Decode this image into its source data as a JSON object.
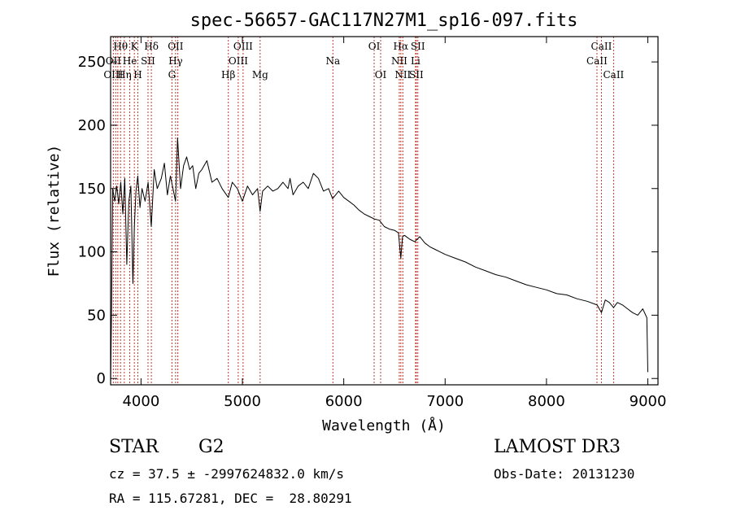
{
  "chart_data": {
    "type": "line",
    "title": "spec-56657-GAC117N27M1_sp16-097.fits",
    "xlabel": "Wavelength (Å)",
    "ylabel": "Flux (relative)",
    "xlim": [
      3700,
      9100
    ],
    "ylim": [
      -5,
      270
    ],
    "xticks": [
      4000,
      5000,
      6000,
      7000,
      8000,
      9000
    ],
    "yticks": [
      0,
      50,
      100,
      150,
      200,
      250
    ],
    "grid": false,
    "series": [
      {
        "x": [
          3700,
          3710,
          3720,
          3740,
          3760,
          3780,
          3800,
          3820,
          3840,
          3860,
          3880,
          3900,
          3920,
          3934,
          3950,
          3968,
          3990,
          4010,
          4040,
          4070,
          4101,
          4130,
          4160,
          4200,
          4230,
          4260,
          4290,
          4320,
          4340,
          4360,
          4390,
          4420,
          4450,
          4480,
          4510,
          4540,
          4570,
          4600,
          4650,
          4700,
          4750,
          4800,
          4861,
          4900,
          4950,
          5000,
          5050,
          5100,
          5150,
          5175,
          5200,
          5250,
          5300,
          5350,
          5400,
          5450,
          5470,
          5500,
          5550,
          5600,
          5650,
          5700,
          5750,
          5800,
          5850,
          5890,
          5950,
          6000,
          6050,
          6100,
          6150,
          6200,
          6250,
          6300,
          6350,
          6400,
          6450,
          6500,
          6540,
          6563,
          6580,
          6600,
          6650,
          6700,
          6750,
          6800,
          6850,
          6900,
          6950,
          7000,
          7100,
          7200,
          7300,
          7400,
          7500,
          7600,
          7700,
          7800,
          7900,
          8000,
          8100,
          8200,
          8300,
          8400,
          8500,
          8542,
          8580,
          8620,
          8662,
          8700,
          8750,
          8800,
          8850,
          8900,
          8950,
          8990,
          9000
        ],
        "y": [
          -3,
          55,
          150,
          140,
          152,
          138,
          155,
          130,
          158,
          90,
          140,
          152,
          75,
          120,
          148,
          160,
          135,
          150,
          140,
          155,
          120,
          165,
          150,
          158,
          170,
          145,
          160,
          148,
          140,
          190,
          150,
          168,
          175,
          165,
          168,
          150,
          162,
          165,
          172,
          155,
          158,
          150,
          143,
          155,
          150,
          140,
          152,
          145,
          150,
          132,
          148,
          152,
          148,
          150,
          155,
          150,
          158,
          145,
          152,
          155,
          150,
          162,
          158,
          148,
          150,
          142,
          148,
          143,
          140,
          137,
          133,
          130,
          128,
          126,
          125,
          120,
          118,
          117,
          115,
          95,
          112,
          113,
          110,
          108,
          112,
          107,
          104,
          102,
          100,
          98,
          95,
          92,
          88,
          85,
          82,
          80,
          77,
          74,
          72,
          70,
          67,
          66,
          63,
          61,
          58,
          52,
          62,
          60,
          56,
          60,
          58,
          55,
          52,
          50,
          55,
          48,
          5
        ]
      }
    ],
    "line_markers": [
      {
        "label": "Hθ",
        "x": 3798,
        "row": 0
      },
      {
        "label": "K",
        "x": 3934,
        "row": 0
      },
      {
        "label": "Hδ",
        "x": 4102,
        "row": 0
      },
      {
        "label": "OII",
        "x": 4341,
        "row": 0
      },
      {
        "label": "OIII",
        "x": 5007,
        "row": 0
      },
      {
        "label": "OI",
        "x": 6300,
        "row": 0
      },
      {
        "label": "Hα",
        "x": 6563,
        "row": 0
      },
      {
        "label": "SII",
        "x": 6731,
        "row": 0
      },
      {
        "label": "CaII",
        "x": 8542,
        "row": 0
      },
      {
        "label": "OII",
        "x": 3727,
        "row": 1
      },
      {
        "label": "He",
        "x": 3889,
        "row": 1
      },
      {
        "label": "SII",
        "x": 4069,
        "row": 1
      },
      {
        "label": "Hγ",
        "x": 4341,
        "row": 1
      },
      {
        "label": "OIII",
        "x": 4959,
        "row": 1
      },
      {
        "label": "Na",
        "x": 5893,
        "row": 1
      },
      {
        "label": "NII",
        "x": 6548,
        "row": 1
      },
      {
        "label": "Li",
        "x": 6708,
        "row": 1
      },
      {
        "label": "CaII",
        "x": 8498,
        "row": 1
      },
      {
        "label": "OIII",
        "x": 3727,
        "row": 2
      },
      {
        "label": "Hη",
        "x": 3835,
        "row": 2
      },
      {
        "label": "H",
        "x": 3969,
        "row": 2
      },
      {
        "label": "G",
        "x": 4305,
        "row": 2
      },
      {
        "label": "Hβ",
        "x": 4861,
        "row": 2
      },
      {
        "label": "Mg",
        "x": 5175,
        "row": 2
      },
      {
        "label": "OI",
        "x": 6364,
        "row": 2
      },
      {
        "label": "NII",
        "x": 6583,
        "row": 2
      },
      {
        "label": "SII",
        "x": 6716,
        "row": 2
      },
      {
        "label": "CaII",
        "x": 8662,
        "row": 2
      }
    ],
    "marker_lines": [
      3727,
      3750,
      3771,
      3798,
      3835,
      3889,
      3934,
      3969,
      4069,
      4102,
      4305,
      4341,
      4363,
      4861,
      4959,
      5007,
      5175,
      5893,
      6300,
      6364,
      6548,
      6563,
      6583,
      6708,
      6716,
      6731,
      8498,
      8542,
      8662
    ],
    "colors": {
      "spectrum": "#000000",
      "marker_line": "#c0392b",
      "axes": "#000000"
    }
  },
  "info": {
    "object_class": "STAR",
    "subclass": "G2",
    "survey": "LAMOST DR3",
    "cz_line": "cz = 37.5 ± -2997624832.0 km/s",
    "obs_date": "Obs-Date: 20131230",
    "coords": "RA = 115.67281, DEC =  28.80291"
  }
}
